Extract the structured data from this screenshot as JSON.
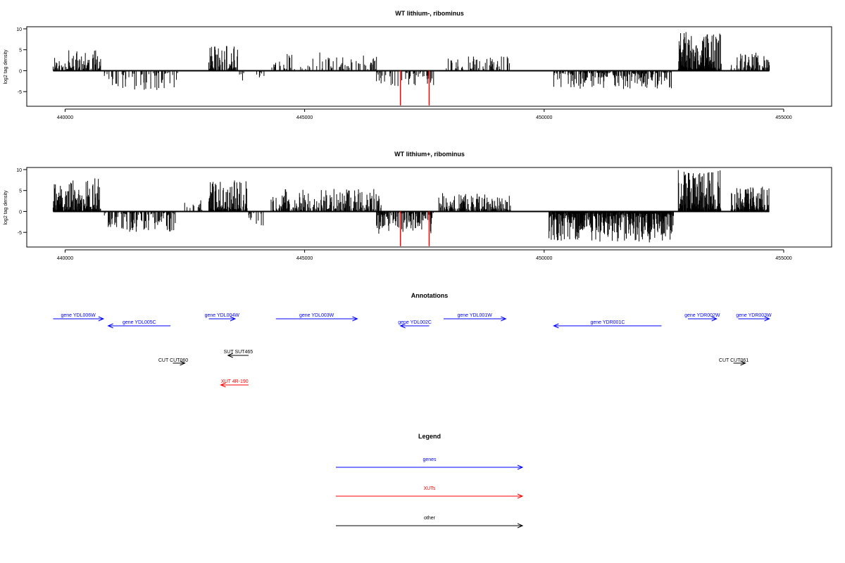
{
  "chart_data": [
    {
      "type": "bar",
      "title": "WT lithium-, ribominus",
      "ylabel": "log2 tag density",
      "xlabel": "",
      "yticks": [
        -5,
        0,
        5,
        10
      ],
      "ylim": [
        -8.5,
        10.5
      ],
      "xticks": [
        "440000",
        "445000",
        "450000",
        "455000"
      ],
      "xlim": [
        439200,
        456000
      ],
      "grid": false,
      "colors": {
        "signal": "#000000",
        "highlight": "#ff0000"
      },
      "highlight_positions": [
        447000,
        447600
      ],
      "highlight_depth": -8.3,
      "tracks": [
        {
          "start": 439750,
          "end": 440750,
          "strand": 1,
          "max": 4.5,
          "density": 0.55,
          "seed": 11
        },
        {
          "start": 440820,
          "end": 442350,
          "strand": -1,
          "max": 4.2,
          "density": 0.28,
          "seed": 12
        },
        {
          "start": 443000,
          "end": 443600,
          "strand": 1,
          "max": 5.5,
          "density": 0.65,
          "seed": 13
        },
        {
          "start": 443600,
          "end": 444200,
          "strand": -1,
          "max": 2.5,
          "density": 0.15,
          "seed": 14
        },
        {
          "start": 444300,
          "end": 446500,
          "strand": 1,
          "max": 4.0,
          "density": 0.22,
          "seed": 15
        },
        {
          "start": 446500,
          "end": 447700,
          "strand": -1,
          "max": 3.5,
          "density": 0.3,
          "seed": 16
        },
        {
          "start": 447900,
          "end": 449300,
          "strand": 1,
          "max": 3.0,
          "density": 0.22,
          "seed": 17
        },
        {
          "start": 450200,
          "end": 452700,
          "strand": -1,
          "max": 4.0,
          "density": 0.6,
          "seed": 18
        },
        {
          "start": 452800,
          "end": 453700,
          "strand": 1,
          "max": 9.0,
          "density": 0.9,
          "seed": 19
        },
        {
          "start": 453900,
          "end": 454700,
          "strand": 1,
          "max": 4.0,
          "density": 0.55,
          "seed": 20
        }
      ]
    },
    {
      "type": "bar",
      "title": "WT lithium+, ribominus",
      "ylabel": "log2 tag density",
      "xlabel": "",
      "yticks": [
        -5,
        0,
        5,
        10
      ],
      "ylim": [
        -8.5,
        10.5
      ],
      "xticks": [
        "440000",
        "445000",
        "450000",
        "455000"
      ],
      "xlim": [
        439200,
        456000
      ],
      "grid": false,
      "colors": {
        "signal": "#000000",
        "highlight": "#ff0000"
      },
      "highlight_positions": [
        447000,
        447600
      ],
      "highlight_depth": -8.3,
      "tracks": [
        {
          "start": 439750,
          "end": 440750,
          "strand": 1,
          "max": 7.5,
          "density": 0.85,
          "seed": 21
        },
        {
          "start": 440820,
          "end": 442300,
          "strand": -1,
          "max": 4.5,
          "density": 0.4,
          "seed": 22
        },
        {
          "start": 442400,
          "end": 442900,
          "strand": 1,
          "max": 2.5,
          "density": 0.1,
          "seed": 23
        },
        {
          "start": 443000,
          "end": 443800,
          "strand": 1,
          "max": 7.0,
          "density": 0.85,
          "seed": 24
        },
        {
          "start": 443800,
          "end": 444200,
          "strand": -1,
          "max": 3.0,
          "density": 0.2,
          "seed": 25
        },
        {
          "start": 444300,
          "end": 446600,
          "strand": 1,
          "max": 5.0,
          "density": 0.55,
          "seed": 26
        },
        {
          "start": 446500,
          "end": 447700,
          "strand": -1,
          "max": 5.0,
          "density": 0.6,
          "seed": 27
        },
        {
          "start": 447800,
          "end": 449300,
          "strand": 1,
          "max": 4.0,
          "density": 0.6,
          "seed": 28
        },
        {
          "start": 450100,
          "end": 452700,
          "strand": -1,
          "max": 7.0,
          "density": 0.95,
          "seed": 29
        },
        {
          "start": 452800,
          "end": 453700,
          "strand": 1,
          "max": 9.5,
          "density": 0.95,
          "seed": 30
        },
        {
          "start": 453900,
          "end": 454700,
          "strand": 1,
          "max": 5.5,
          "density": 0.85,
          "seed": 31
        }
      ]
    },
    {
      "type": "annotation",
      "title": "Annotations",
      "xlim": [
        439200,
        456000
      ],
      "features": [
        {
          "label": "gene YDL006W",
          "start": 439750,
          "end": 440800,
          "strand": "+",
          "class": "gene",
          "row": 0
        },
        {
          "label": "gene YDL005C",
          "start": 440900,
          "end": 442200,
          "strand": "-",
          "class": "gene",
          "row": 1
        },
        {
          "label": "gene YDL004W",
          "start": 443000,
          "end": 443550,
          "strand": "+",
          "class": "gene",
          "row": 0
        },
        {
          "label": "gene YDL003W",
          "start": 444400,
          "end": 446100,
          "strand": "+",
          "class": "gene",
          "row": 0
        },
        {
          "label": "gene YDL002C",
          "start": 447000,
          "end": 447600,
          "strand": "-",
          "class": "gene",
          "row": 1
        },
        {
          "label": "gene YDL001W",
          "start": 447900,
          "end": 449200,
          "strand": "+",
          "class": "gene",
          "row": 0
        },
        {
          "label": "gene YDR001C",
          "start": 450200,
          "end": 452450,
          "strand": "-",
          "class": "gene",
          "row": 1
        },
        {
          "label": "gene YDR002W",
          "start": 453000,
          "end": 453600,
          "strand": "+",
          "class": "gene",
          "row": 0
        },
        {
          "label": "gene YDR003W",
          "start": 454050,
          "end": 454700,
          "strand": "+",
          "class": "gene",
          "row": 0
        },
        {
          "label": "SUT SUT465",
          "start": 443400,
          "end": 443830,
          "strand": "-",
          "class": "other",
          "row": 2
        },
        {
          "label": "CUT CUT060",
          "start": 442250,
          "end": 442500,
          "strand": "+",
          "class": "other",
          "row": 3
        },
        {
          "label": "CUT CUT061",
          "start": 453950,
          "end": 454200,
          "strand": "+",
          "class": "other",
          "row": 3
        },
        {
          "label": "XUT 4R-190",
          "start": 443250,
          "end": 443830,
          "strand": "-",
          "class": "xut",
          "row": 4
        }
      ]
    }
  ],
  "legend": {
    "title": "Legend",
    "items": [
      {
        "label": "genes",
        "color": "#0000ff"
      },
      {
        "label": "XUTs",
        "color": "#ff0000"
      },
      {
        "label": "other",
        "color": "#000000"
      }
    ]
  },
  "colors": {
    "gene": "#0000ff",
    "xut": "#ff0000",
    "other": "#000000",
    "axis": "#000000"
  }
}
